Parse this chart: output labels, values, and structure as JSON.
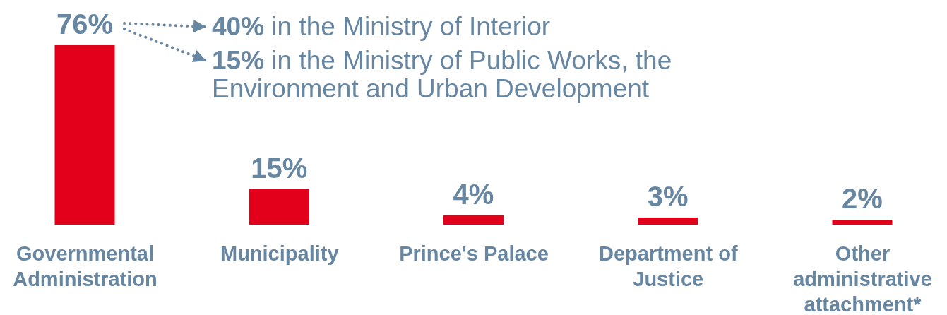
{
  "chart_data": {
    "type": "bar",
    "categories": [
      "Governmental Administration",
      "Municipality",
      "Prince's Palace",
      "Department of Justice",
      "Other administrative attachment*"
    ],
    "values": [
      76,
      15,
      4,
      3,
      2
    ],
    "color": "#e2001a",
    "value_labels": [
      "76%",
      "15%",
      "4%",
      "3%",
      "2%"
    ],
    "annotations": [
      "40% in the Ministry of Interior",
      "15% in the Ministry of Public Works, the Environment and Urban Development"
    ]
  }
}
